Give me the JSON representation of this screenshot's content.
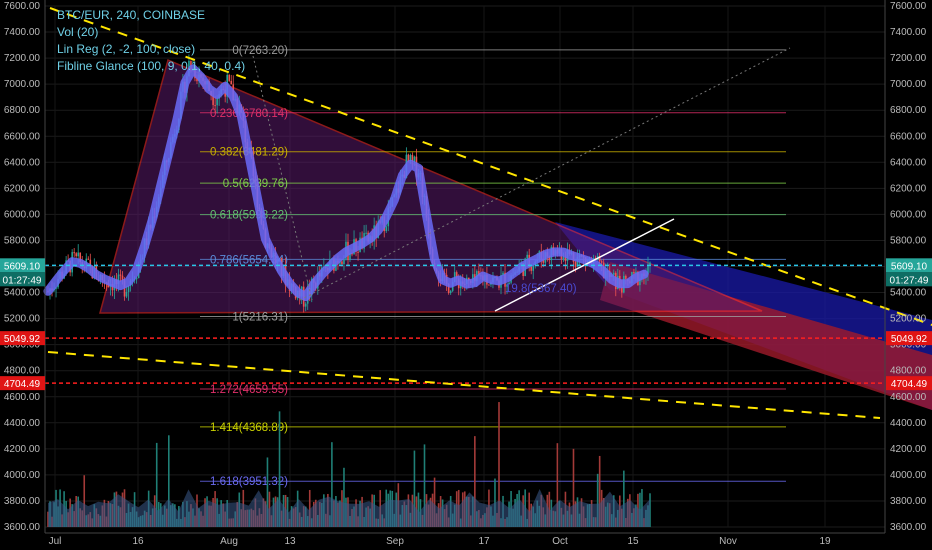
{
  "legend": {
    "symbol": "BTC/EUR, 240, COINBASE",
    "vol": "Vol (20)",
    "linreg": "Lin Reg (2, -2, 100, close)",
    "fib": "Fibline Glance (100, 9, 0.1, 40, 0.4)"
  },
  "chart_data": {
    "type": "candlestick",
    "ylim": [
      3600,
      7600
    ],
    "y_ticks": [
      3600,
      3800,
      4000,
      4200,
      4400,
      4600,
      4800,
      5000,
      5200,
      5400,
      5600,
      5800,
      6000,
      6200,
      6400,
      6600,
      6800,
      7000,
      7200,
      7400,
      7600
    ],
    "x_ticks": [
      "Jul",
      "16",
      "Aug",
      "13",
      "Sep",
      "17",
      "Oct",
      "15",
      "Nov",
      "19"
    ],
    "price_tag": {
      "value": "5609.10",
      "countdown": "01:27:49",
      "color": "#26a69a"
    },
    "horizontal_levels": [
      {
        "value": 5049.92,
        "label": "5049.92",
        "color": "#ff1f1f"
      },
      {
        "value": 4704.49,
        "label": "4704.49",
        "color": "#ff1f1f"
      }
    ],
    "fib_levels": [
      {
        "label": "0(7263.20)",
        "value": 7263.2,
        "color": "#9a9a9a"
      },
      {
        "label": "0.236(6780.14)",
        "value": 6780.14,
        "color": "#e0306a"
      },
      {
        "label": "0.382(6481.29)",
        "value": 6481.29,
        "color": "#c9b000"
      },
      {
        "label": "0.5(6239.76)",
        "value": 6239.76,
        "color": "#7fd04a"
      },
      {
        "label": "0.618(5998.22)",
        "value": 5998.22,
        "color": "#62c070"
      },
      {
        "label": "0.786(5654.34)",
        "value": 5654.34,
        "color": "#5a8ad8"
      },
      {
        "label": "1(5216.31)",
        "value": 5216.31,
        "color": "#a0a0a0"
      },
      {
        "label": "1.272(4659.55)",
        "value": 4659.55,
        "color": "#e0306a"
      },
      {
        "label": "1.414(4368.89)",
        "value": 4368.89,
        "color": "#c9d000"
      },
      {
        "label": "1.618(3951.32)",
        "value": 3951.32,
        "color": "#6a6af0"
      }
    ],
    "trend_label": "19.8(5367.40)",
    "candle_path": [
      5410,
      5540,
      5650,
      5600,
      5520,
      5480,
      5440,
      5590,
      5900,
      6300,
      6700,
      7150,
      7050,
      6900,
      7000,
      6800,
      6300,
      5800,
      5600,
      5450,
      5350,
      5500,
      5600,
      5700,
      5750,
      5800,
      5900,
      6100,
      6400,
      6350,
      5700,
      5450,
      5500,
      5450,
      5530,
      5480,
      5520,
      5600,
      5650,
      5700,
      5720,
      5680,
      5650,
      5600,
      5500,
      5450,
      5520,
      5560
    ]
  }
}
